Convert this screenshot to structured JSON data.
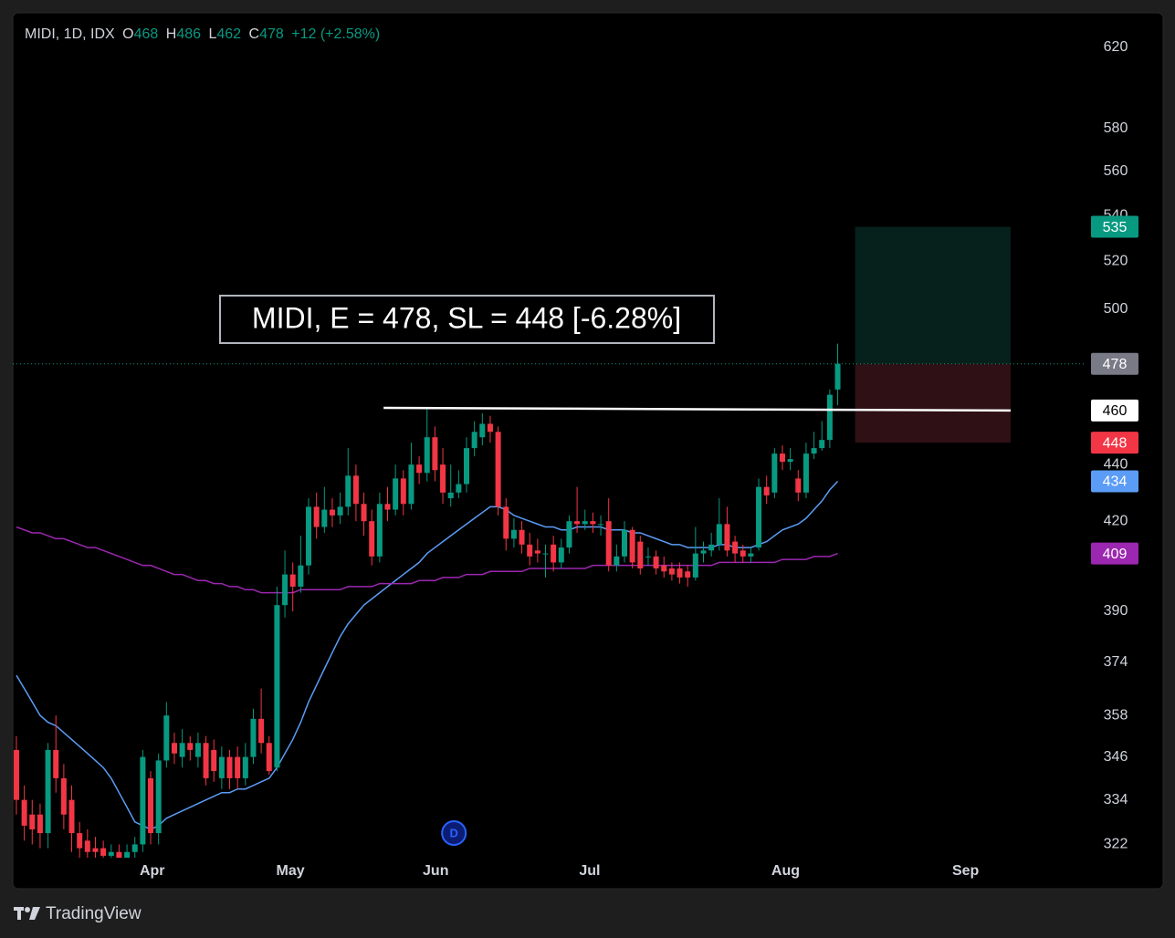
{
  "chart_data": {
    "type": "candlestick",
    "header": {
      "symbol": "MIDI, 1D, IDX",
      "open_label": "O",
      "high_label": "H",
      "low_label": "L",
      "close_label": "C",
      "change": "+12 (+2.58%)"
    },
    "annotation": "MIDI, E = 478, SL = 448 [-6.28%]",
    "log_scale": true,
    "up_color": "#089981",
    "down_color": "#f23645",
    "xlim": [
      -0.46,
      135.5
    ],
    "xticks": [
      {
        "value": 17.2,
        "label": "Apr"
      },
      {
        "value": 34.7,
        "label": "May"
      },
      {
        "value": 53.1,
        "label": "Jun"
      },
      {
        "value": 72.6,
        "label": "Jul"
      },
      {
        "value": 97.4,
        "label": "Aug"
      },
      {
        "value": 120.2,
        "label": "Sep"
      }
    ],
    "ylim": [
      318.5,
      637.9
    ],
    "yticks": [
      620,
      580,
      560,
      540,
      520,
      500,
      440,
      420,
      390,
      374,
      358,
      346,
      334,
      322
    ],
    "x": [
      0,
      1,
      2,
      3,
      4,
      5,
      6,
      7,
      8,
      9,
      10,
      11,
      12,
      13,
      14,
      15,
      16,
      17,
      18,
      19,
      20,
      21,
      22,
      23,
      24,
      25,
      26,
      27,
      28,
      29,
      30,
      31,
      32,
      33,
      34,
      35,
      36,
      37,
      38,
      39,
      40,
      41,
      42,
      43,
      44,
      45,
      46,
      47,
      48,
      49,
      50,
      51,
      52,
      53,
      54,
      55,
      56,
      57,
      58,
      59,
      60,
      61,
      62,
      63,
      64,
      65,
      66,
      67,
      68,
      69,
      70,
      71,
      72,
      73,
      74,
      75,
      76,
      77,
      78,
      79,
      80,
      81,
      82,
      83,
      84,
      85,
      86,
      87,
      88,
      89,
      90,
      91,
      92,
      93,
      94,
      95,
      96,
      97,
      98,
      99,
      100,
      101,
      102,
      103,
      104
    ],
    "open": [
      348,
      334,
      330,
      330,
      325,
      348,
      340,
      334,
      325,
      323,
      321,
      321,
      319,
      320,
      318,
      320,
      322,
      340,
      325,
      345,
      350,
      346,
      350,
      346,
      350,
      348,
      340,
      346,
      346,
      340,
      346,
      357,
      350,
      343,
      392,
      402,
      398,
      405,
      425,
      418,
      424,
      422,
      425,
      436,
      426,
      420,
      408,
      426,
      424,
      435,
      426,
      440,
      437,
      450,
      440,
      428,
      430,
      433,
      446,
      450,
      455,
      452,
      425,
      414,
      417,
      412,
      410,
      409,
      412,
      406,
      411,
      420,
      419,
      420,
      419,
      420,
      405,
      408,
      417,
      413,
      408,
      408,
      405,
      404,
      404,
      403,
      401,
      409,
      410,
      412,
      419,
      413,
      410,
      408,
      411,
      432,
      430,
      444,
      441,
      435,
      430,
      444,
      446,
      449,
      468
    ],
    "high": [
      352,
      338,
      334,
      333,
      350,
      358,
      344,
      338,
      328,
      326,
      324,
      323,
      322,
      322,
      322,
      324,
      348,
      342,
      347,
      362,
      353,
      354,
      352,
      353,
      352,
      351,
      349,
      348,
      349,
      350,
      360,
      366,
      352,
      398,
      410,
      406,
      415,
      428,
      430,
      432,
      428,
      430,
      446,
      440,
      430,
      424,
      430,
      432,
      440,
      438,
      448,
      443,
      461,
      454,
      446,
      440,
      438,
      450,
      456,
      459,
      458,
      454,
      428,
      421,
      420,
      416,
      414,
      412,
      415,
      414,
      422,
      432,
      424,
      423,
      422,
      428,
      412,
      420,
      418,
      415,
      411,
      410,
      408,
      406,
      406,
      405,
      418,
      413,
      416,
      428,
      425,
      415,
      412,
      411,
      435,
      436,
      446,
      447,
      446,
      438,
      448,
      452,
      456,
      468,
      486
    ],
    "low": [
      330,
      323,
      322,
      321,
      321,
      336,
      326,
      320,
      318,
      318,
      318,
      317,
      317,
      316,
      316,
      318,
      320,
      322,
      322,
      343,
      344,
      343,
      345,
      343,
      338,
      339,
      337,
      337,
      337,
      338,
      344,
      347,
      341,
      342,
      388,
      390,
      396,
      402,
      414,
      416,
      418,
      419,
      422,
      420,
      415,
      405,
      406,
      420,
      422,
      422,
      424,
      433,
      434,
      434,
      426,
      425,
      428,
      430,
      443,
      447,
      448,
      422,
      410,
      411,
      409,
      405,
      406,
      401,
      403,
      404,
      409,
      416,
      417,
      416,
      415,
      403,
      403,
      406,
      404,
      402,
      405,
      402,
      401,
      400,
      399,
      398,
      400,
      406,
      408,
      410,
      408,
      406,
      406,
      406,
      410,
      426,
      428,
      438,
      438,
      427,
      428,
      442,
      445,
      446,
      462
    ],
    "close": [
      334,
      327,
      326,
      325,
      348,
      340,
      330,
      325,
      321,
      320,
      320,
      319,
      320,
      318,
      320,
      322,
      346,
      325,
      345,
      358,
      347,
      350,
      348,
      350,
      340,
      342,
      346,
      340,
      340,
      346,
      357,
      350,
      342,
      392,
      402,
      398,
      405,
      425,
      418,
      424,
      422,
      425,
      436,
      426,
      420,
      408,
      426,
      424,
      435,
      426,
      440,
      437,
      450,
      438,
      430,
      430,
      433,
      446,
      452,
      455,
      452,
      425,
      414,
      417,
      412,
      408,
      409,
      409,
      406,
      411,
      420,
      419,
      420,
      419,
      419,
      405,
      408,
      417,
      406,
      404,
      408,
      404,
      403,
      402,
      401,
      401,
      409,
      410,
      412,
      419,
      410,
      409,
      408,
      409,
      432,
      429,
      444,
      441,
      442,
      430,
      444,
      446,
      449,
      466,
      478
    ],
    "lines": [
      {
        "color": "#5b9cf6",
        "values": [
          370,
          366,
          362,
          358,
          356,
          355,
          353,
          351,
          349,
          347,
          345,
          343,
          340,
          336,
          332,
          328,
          327,
          326,
          327,
          329,
          330,
          331,
          332,
          333,
          334,
          335,
          336,
          336,
          337,
          337,
          338,
          339,
          340,
          343,
          347,
          351,
          356,
          362,
          367,
          372,
          377,
          382,
          386,
          389,
          392,
          394,
          396,
          398,
          400,
          402,
          404,
          406,
          409,
          411,
          413,
          415,
          417,
          419,
          421,
          423,
          425,
          425,
          424,
          422,
          421,
          420,
          419,
          418,
          418,
          417,
          417,
          418,
          418,
          418,
          418,
          417,
          417,
          417,
          416,
          416,
          415,
          414,
          413,
          412,
          412,
          411,
          411,
          411,
          411,
          412,
          412,
          411,
          411,
          411,
          412,
          413,
          415,
          417,
          418,
          419,
          421,
          424,
          427,
          431,
          434
        ]
      },
      {
        "color": "#9c27b0",
        "values": [
          418,
          417,
          416,
          416,
          415,
          414,
          414,
          413,
          412,
          411,
          411,
          410,
          409,
          408,
          407,
          406,
          405,
          405,
          404,
          403,
          402,
          402,
          401,
          400,
          400,
          399,
          399,
          398,
          398,
          397,
          397,
          396,
          396,
          396,
          396,
          396,
          397,
          397,
          397,
          397,
          397,
          397,
          398,
          398,
          398,
          398,
          399,
          399,
          399,
          399,
          399,
          400,
          400,
          400,
          401,
          401,
          401,
          402,
          402,
          402,
          403,
          403,
          403,
          403,
          403,
          404,
          404,
          404,
          404,
          404,
          404,
          404,
          404,
          405,
          405,
          405,
          405,
          405,
          405,
          405,
          405,
          405,
          405,
          405,
          405,
          405,
          405,
          405,
          405,
          406,
          406,
          406,
          406,
          406,
          406,
          406,
          406,
          407,
          407,
          407,
          407,
          408,
          408,
          408,
          409
        ]
      }
    ],
    "trendline": {
      "x": [
        46.5,
        125.9
      ],
      "values": [
        461,
        460
      ],
      "color": "#ffffff"
    },
    "position": {
      "x": [
        106.2,
        125.9
      ],
      "target": 535,
      "entry": 478,
      "stop": 448
    },
    "events": [
      {
        "label": "D",
        "x": 55.4
      }
    ]
  },
  "footer": {
    "brand": "TradingView"
  }
}
